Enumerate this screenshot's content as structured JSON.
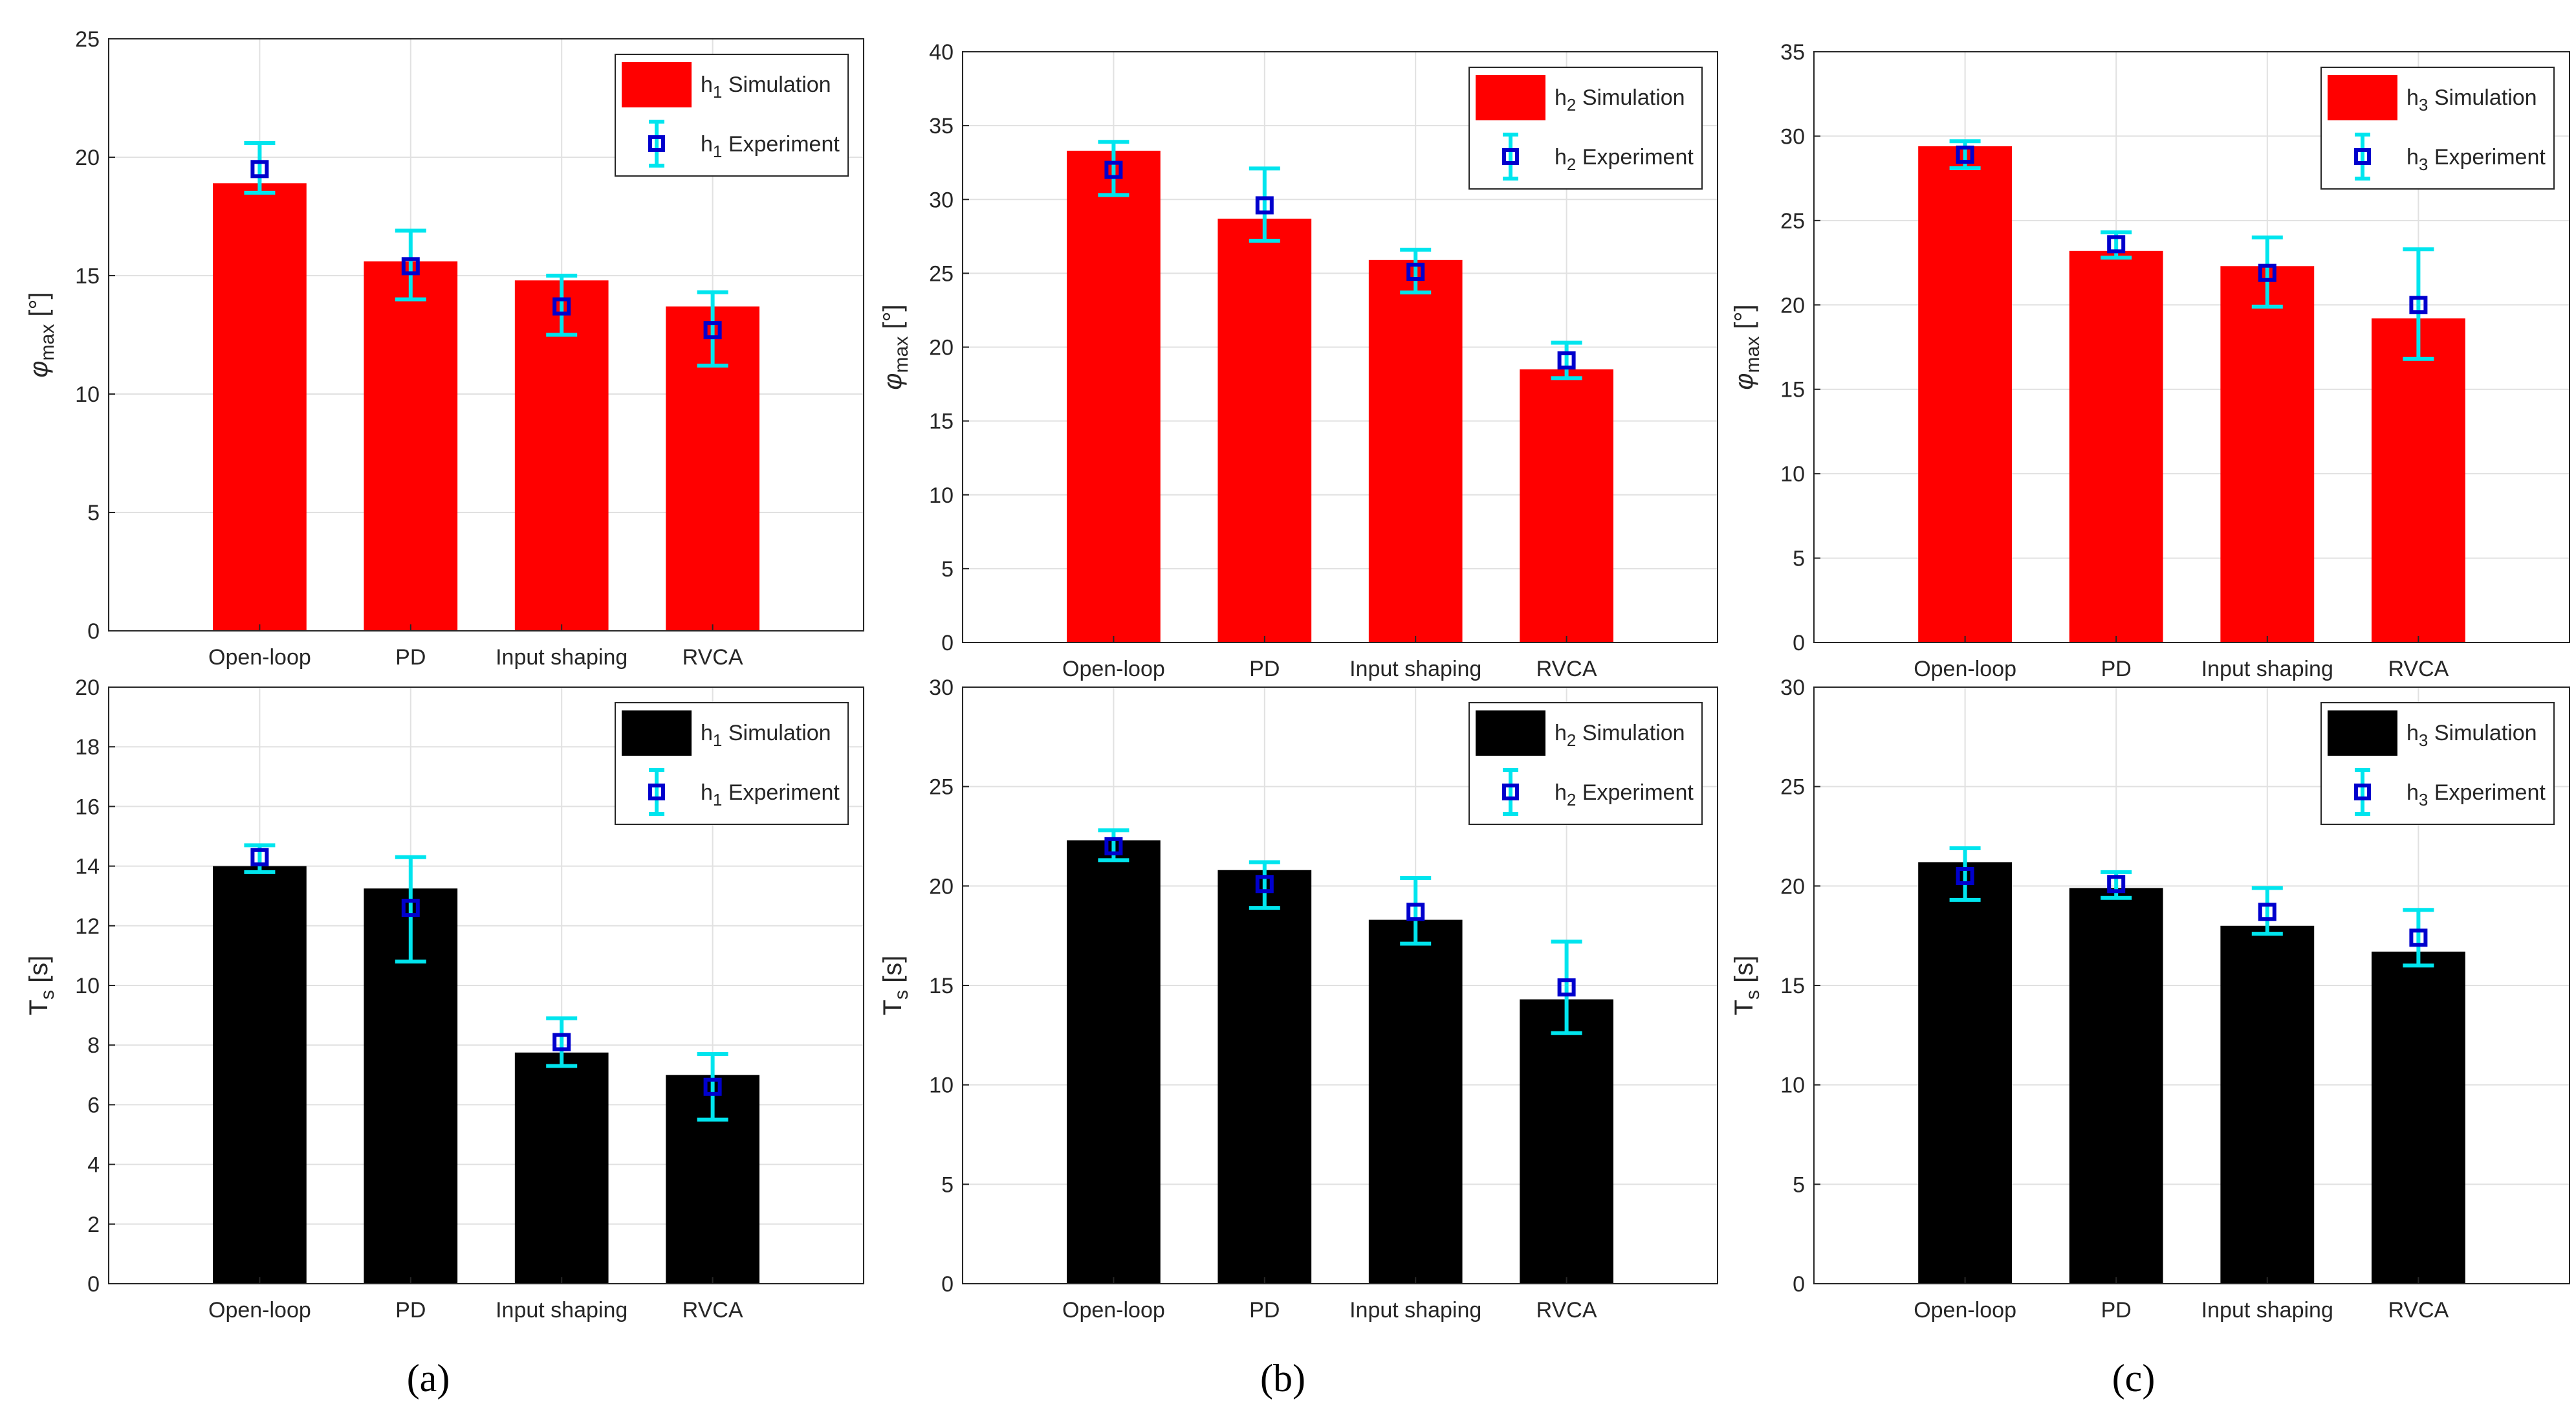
{
  "chart_data": [
    {
      "id": "a-top",
      "type": "bar",
      "categories": [
        "Open-loop",
        "PD",
        "Input shaping",
        "RVCA"
      ],
      "ylabel_symbol": "φ",
      "ylabel_sub": "max",
      "ylabel_unit": "[°]",
      "ylim": [
        0,
        25
      ],
      "yticks": [
        0,
        5,
        10,
        15,
        20,
        25
      ],
      "grid": true,
      "legend_position": "top-right",
      "bar_color": "#ff0000",
      "series": [
        {
          "name_base": "h",
          "name_sub": "1",
          "name_rest": "Simulation",
          "kind": "bar",
          "values": [
            18.9,
            15.6,
            14.8,
            13.7
          ]
        },
        {
          "name_base": "h",
          "name_sub": "1",
          "name_rest": "Experiment",
          "kind": "errorbar",
          "values": [
            19.5,
            15.4,
            13.7,
            12.7
          ],
          "lower": [
            18.5,
            14.0,
            12.5,
            11.2
          ],
          "upper": [
            20.6,
            16.9,
            15.0,
            14.3
          ]
        }
      ]
    },
    {
      "id": "b-top",
      "type": "bar",
      "categories": [
        "Open-loop",
        "PD",
        "Input shaping",
        "RVCA"
      ],
      "ylabel_symbol": "φ",
      "ylabel_sub": "max",
      "ylabel_unit": "[°]",
      "ylim": [
        0,
        40
      ],
      "yticks": [
        0,
        5,
        10,
        15,
        20,
        25,
        30,
        35,
        40
      ],
      "grid": true,
      "legend_position": "top-right",
      "bar_color": "#ff0000",
      "series": [
        {
          "name_base": "h",
          "name_sub": "2",
          "name_rest": "Simulation",
          "kind": "bar",
          "values": [
            33.3,
            28.7,
            25.9,
            18.5
          ]
        },
        {
          "name_base": "h",
          "name_sub": "2",
          "name_rest": "Experiment",
          "kind": "errorbar",
          "values": [
            32.0,
            29.6,
            25.1,
            19.1
          ],
          "lower": [
            30.3,
            27.2,
            23.7,
            17.9
          ],
          "upper": [
            33.9,
            32.1,
            26.6,
            20.3
          ]
        }
      ]
    },
    {
      "id": "c-top",
      "type": "bar",
      "categories": [
        "Open-loop",
        "PD",
        "Input shaping",
        "RVCA"
      ],
      "ylabel_symbol": "φ",
      "ylabel_sub": "max",
      "ylabel_unit": "[°]",
      "ylim": [
        0,
        35
      ],
      "yticks": [
        0,
        5,
        10,
        15,
        20,
        25,
        30,
        35
      ],
      "grid": true,
      "legend_position": "top-right",
      "bar_color": "#ff0000",
      "series": [
        {
          "name_base": "h",
          "name_sub": "3",
          "name_rest": "Simulation",
          "kind": "bar",
          "values": [
            29.4,
            23.2,
            22.3,
            19.2
          ]
        },
        {
          "name_base": "h",
          "name_sub": "3",
          "name_rest": "Experiment",
          "kind": "errorbar",
          "values": [
            28.9,
            23.6,
            21.9,
            20.0
          ],
          "lower": [
            28.1,
            22.8,
            19.9,
            16.8
          ],
          "upper": [
            29.7,
            24.3,
            24.0,
            23.3
          ]
        }
      ]
    },
    {
      "id": "a-bottom",
      "type": "bar",
      "categories": [
        "Open-loop",
        "PD",
        "Input shaping",
        "RVCA"
      ],
      "ylabel_symbol": "T",
      "ylabel_sub": "s",
      "ylabel_unit": "[s]",
      "ylim": [
        0,
        20
      ],
      "yticks": [
        0,
        2,
        4,
        6,
        8,
        10,
        12,
        14,
        16,
        18,
        20
      ],
      "grid": true,
      "legend_position": "top-right",
      "bar_color": "#000000",
      "series": [
        {
          "name_base": "h",
          "name_sub": "1",
          "name_rest": "Simulation",
          "kind": "bar",
          "values": [
            14.0,
            13.25,
            7.75,
            7.0
          ]
        },
        {
          "name_base": "h",
          "name_sub": "1",
          "name_rest": "Experiment",
          "kind": "errorbar",
          "values": [
            14.3,
            12.6,
            8.1,
            6.6
          ],
          "lower": [
            13.8,
            10.8,
            7.3,
            5.5
          ],
          "upper": [
            14.7,
            14.3,
            8.9,
            7.7
          ]
        }
      ]
    },
    {
      "id": "b-bottom",
      "type": "bar",
      "categories": [
        "Open-loop",
        "PD",
        "Input shaping",
        "RVCA"
      ],
      "ylabel_symbol": "T",
      "ylabel_sub": "s",
      "ylabel_unit": "[s]",
      "ylim": [
        0,
        30
      ],
      "yticks": [
        0,
        5,
        10,
        15,
        20,
        25,
        30
      ],
      "grid": true,
      "legend_position": "top-right",
      "bar_color": "#000000",
      "series": [
        {
          "name_base": "h",
          "name_sub": "2",
          "name_rest": "Simulation",
          "kind": "bar",
          "values": [
            22.3,
            20.8,
            18.3,
            14.3
          ]
        },
        {
          "name_base": "h",
          "name_sub": "2",
          "name_rest": "Experiment",
          "kind": "errorbar",
          "values": [
            22.0,
            20.1,
            18.7,
            14.9
          ],
          "lower": [
            21.3,
            18.9,
            17.1,
            12.6
          ],
          "upper": [
            22.8,
            21.2,
            20.4,
            17.2
          ]
        }
      ]
    },
    {
      "id": "c-bottom",
      "type": "bar",
      "categories": [
        "Open-loop",
        "PD",
        "Input shaping",
        "RVCA"
      ],
      "ylabel_symbol": "T",
      "ylabel_sub": "s",
      "ylabel_unit": "[s]",
      "ylim": [
        0,
        30
      ],
      "yticks": [
        0,
        5,
        10,
        15,
        20,
        25,
        30
      ],
      "grid": true,
      "legend_position": "top-right",
      "bar_color": "#000000",
      "series": [
        {
          "name_base": "h",
          "name_sub": "3",
          "name_rest": "Simulation",
          "kind": "bar",
          "values": [
            21.2,
            19.9,
            18.0,
            16.7
          ]
        },
        {
          "name_base": "h",
          "name_sub": "3",
          "name_rest": "Experiment",
          "kind": "errorbar",
          "values": [
            20.5,
            20.1,
            18.7,
            17.4
          ],
          "lower": [
            19.3,
            19.4,
            17.6,
            16.0
          ],
          "upper": [
            21.9,
            20.7,
            19.9,
            18.8
          ]
        }
      ]
    }
  ],
  "captions": {
    "a": "(a)",
    "b": "(b)",
    "c": "(c)"
  },
  "colors": {
    "errorbar": "#00e5ee",
    "marker_edge": "#0000cd",
    "grid": "#e1e1e1",
    "axis": "#262626"
  }
}
